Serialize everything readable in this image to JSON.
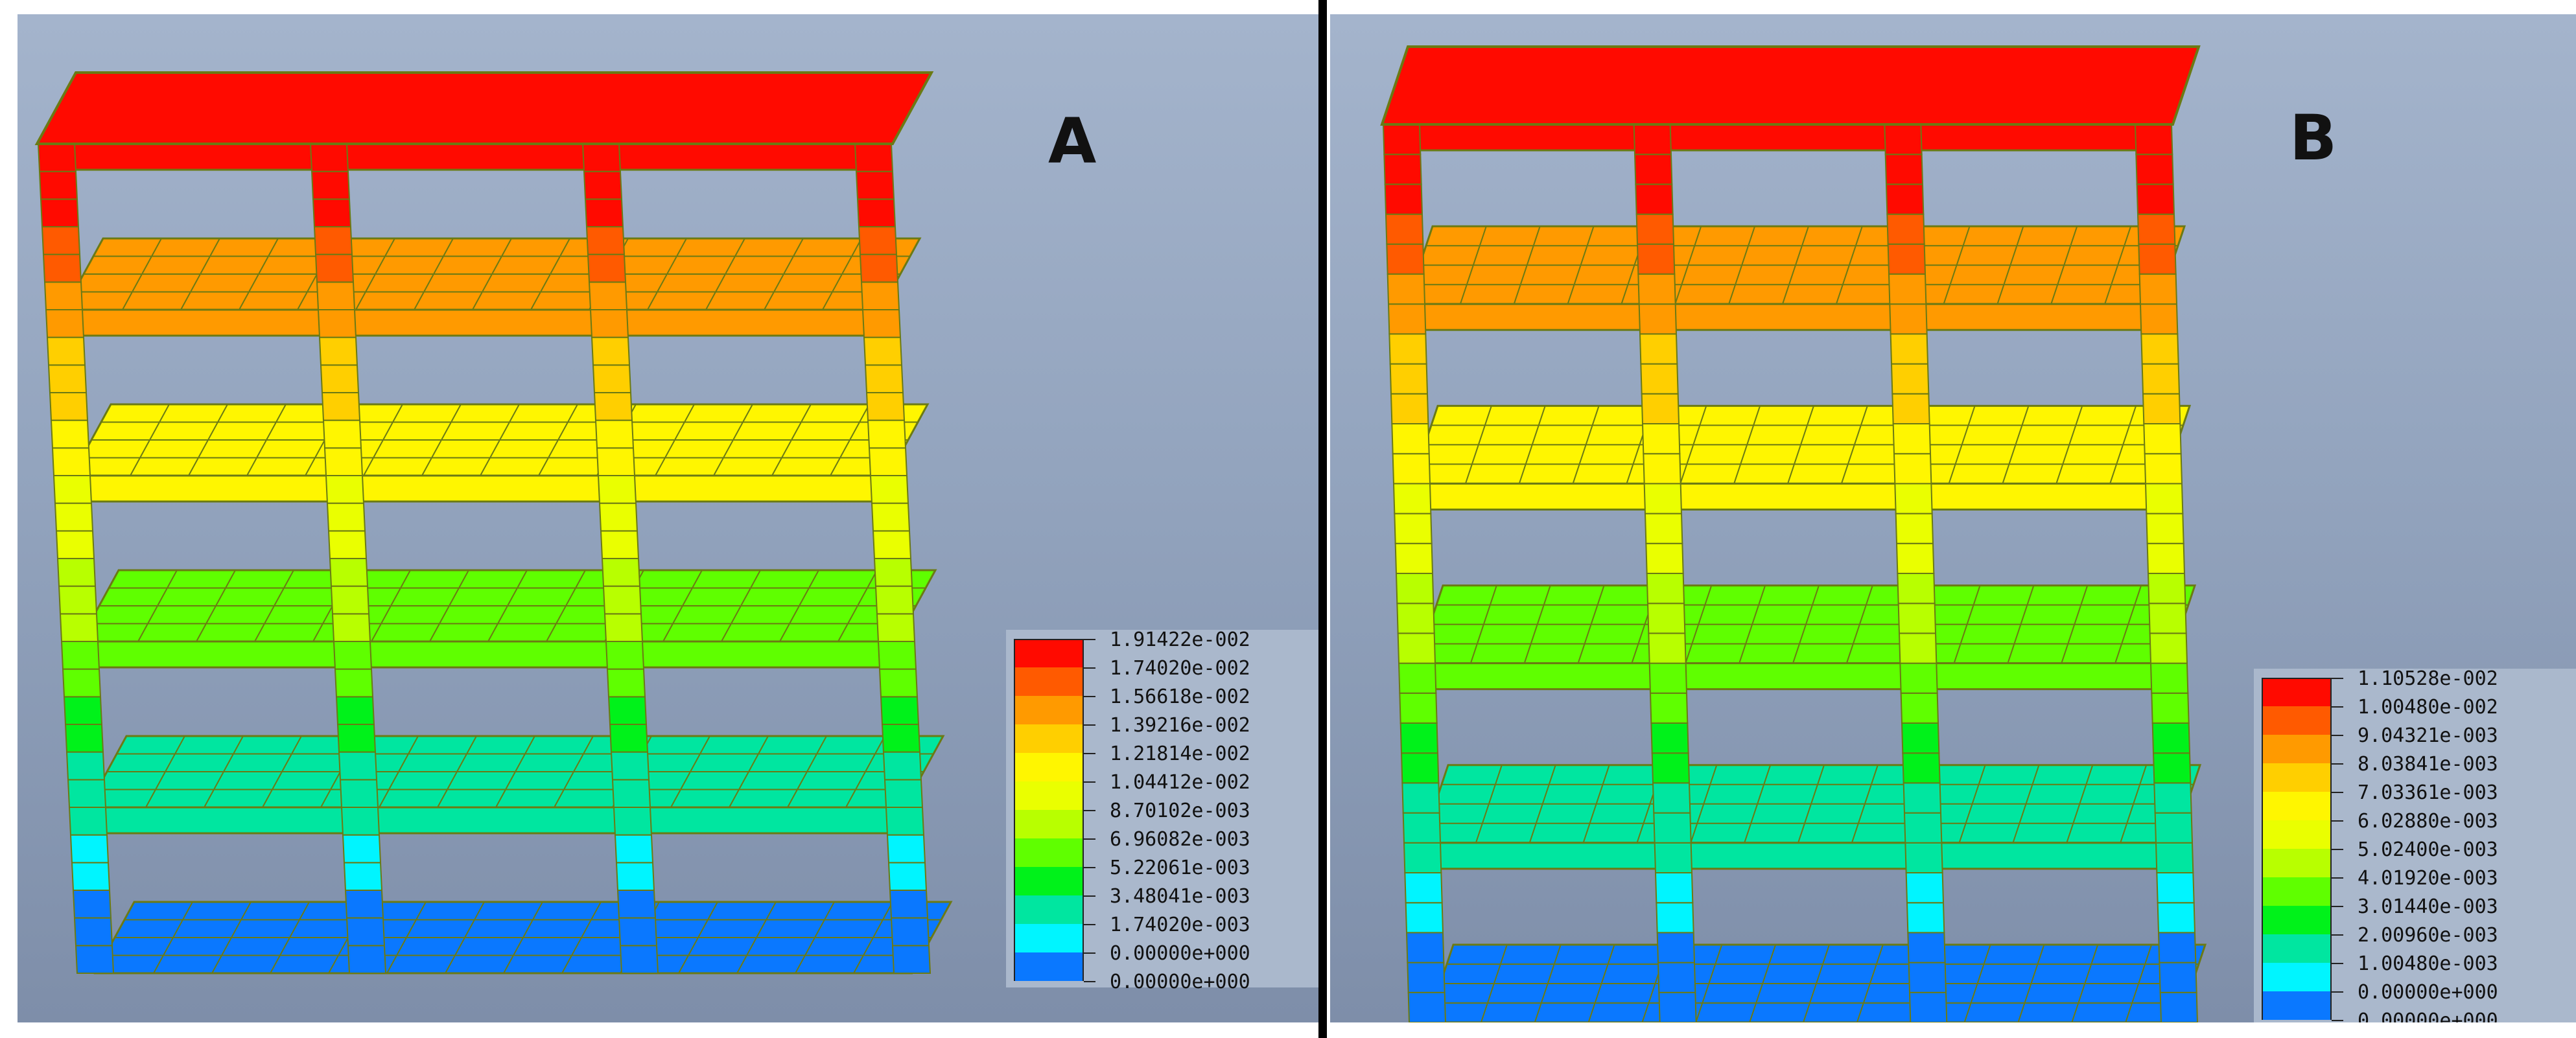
{
  "panels": [
    {
      "label": "A",
      "legend": {
        "values": [
          "1.91422e-002",
          "1.74020e-002",
          "1.56618e-002",
          "1.39216e-002",
          "1.21814e-002",
          "1.04412e-002",
          "8.70102e-003",
          "6.96082e-003",
          "5.22061e-003",
          "3.48041e-003",
          "1.74020e-003",
          "0.00000e+000"
        ],
        "colors": [
          "#ff0a00",
          "#ff5a00",
          "#ff9a00",
          "#ffcf00",
          "#fff600",
          "#eaff00",
          "#b8ff00",
          "#5fff00",
          "#00f21a",
          "#00e6a0",
          "#00f5ff",
          "#0a78ff"
        ]
      }
    },
    {
      "label": "B",
      "legend": {
        "values": [
          "1.10528e-002",
          "1.00480e-002",
          "9.04321e-003",
          "8.03841e-003",
          "7.03361e-003",
          "6.02880e-003",
          "5.02400e-003",
          "4.01920e-003",
          "3.01440e-003",
          "2.00960e-003",
          "1.00480e-003",
          "0.00000e+000"
        ],
        "colors": [
          "#ff0a00",
          "#ff5a00",
          "#ff9a00",
          "#ffcf00",
          "#fff600",
          "#eaff00",
          "#b8ff00",
          "#5fff00",
          "#00f21a",
          "#00e6a0",
          "#00f5ff",
          "#0a78ff"
        ]
      }
    }
  ]
}
